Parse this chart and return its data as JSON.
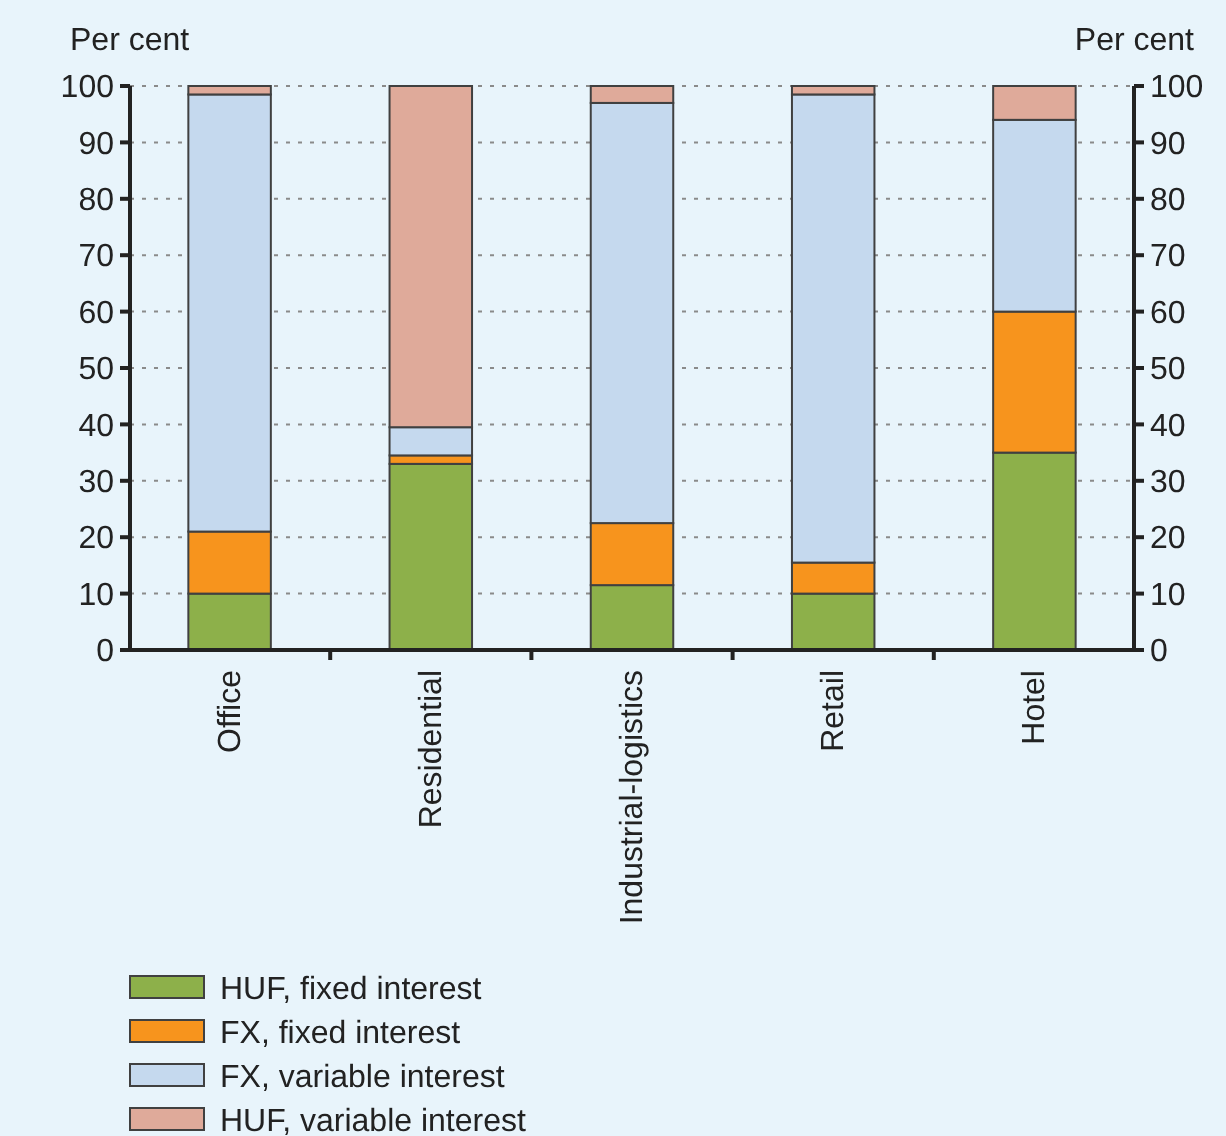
{
  "chart_data": {
    "type": "bar",
    "stacked": true,
    "ylabel": "Per cent",
    "y2label": "Per cent",
    "categories": [
      "Office",
      "Residential",
      "Industrial-logistics",
      "Retail",
      "Hotel"
    ],
    "series": [
      {
        "name": "HUF, fixed interest",
        "color": "#8db04a",
        "values": [
          10,
          33,
          11.5,
          10,
          35
        ]
      },
      {
        "name": "FX, fixed interest",
        "color": "#f7941d",
        "values": [
          11,
          1.5,
          11,
          5.5,
          25
        ]
      },
      {
        "name": "FX, variable interest",
        "color": "#c5d9ee",
        "values": [
          77.5,
          5,
          74.5,
          83,
          34
        ]
      },
      {
        "name": "HUF, variable interest",
        "color": "#dfaa9a",
        "values": [
          1.5,
          60.5,
          3,
          1.5,
          6
        ]
      }
    ],
    "ylim": [
      0,
      100
    ],
    "yticks": [
      0,
      10,
      20,
      30,
      40,
      50,
      60,
      70,
      80,
      90,
      100
    ],
    "y2lim": [
      0,
      100
    ],
    "y2ticks": [
      0,
      10,
      20,
      30,
      40,
      50,
      60,
      70,
      80,
      90,
      100
    ],
    "grid": "y",
    "legend": "bottom left"
  }
}
